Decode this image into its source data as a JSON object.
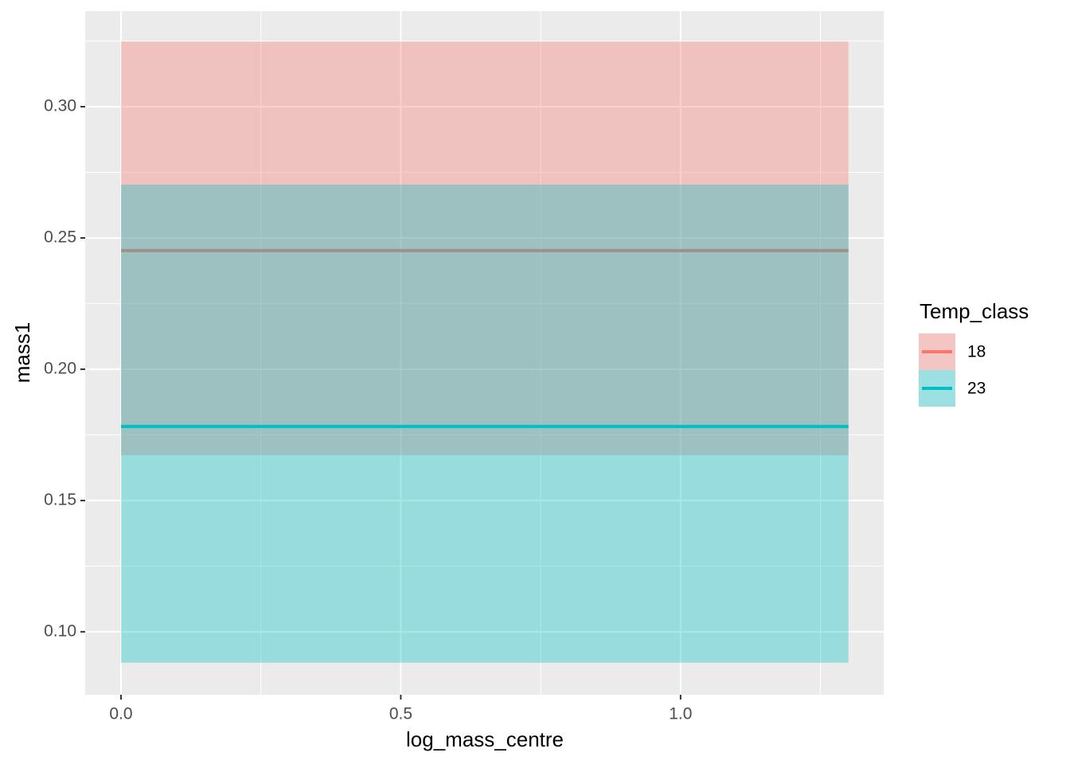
{
  "chart_data": {
    "type": "ribbon-line",
    "x_label": "log_mass_centre",
    "y_label": "mass1",
    "legend_title": "Temp_class",
    "x": [
      0,
      1.3
    ],
    "series": [
      {
        "name": "18",
        "color": "#F8766D",
        "values": [
          0.2452,
          0.2452
        ],
        "lower": [
          0.1673,
          0.1673
        ],
        "upper": [
          0.3248,
          0.3248
        ]
      },
      {
        "name": "23",
        "color": "#00BFC4",
        "values": [
          0.1782,
          0.1782
        ],
        "lower": [
          0.0882,
          0.0882
        ],
        "upper": [
          0.2703,
          0.2703
        ]
      }
    ],
    "xlim": [
      -0.064,
      1.363
    ],
    "ylim": [
      0.076,
      0.3364
    ],
    "xticks": [
      {
        "value": 0,
        "label": "0.0"
      },
      0.5,
      {
        "value": 1,
        "label": "1.0"
      }
    ],
    "yticks": [
      {
        "value": 0.1,
        "label": "0.10"
      },
      0.15,
      {
        "value": 0.2,
        "label": "0.20"
      },
      0.25,
      {
        "value": 0.3,
        "label": "0.30"
      }
    ],
    "grid": true,
    "legend": "right"
  }
}
